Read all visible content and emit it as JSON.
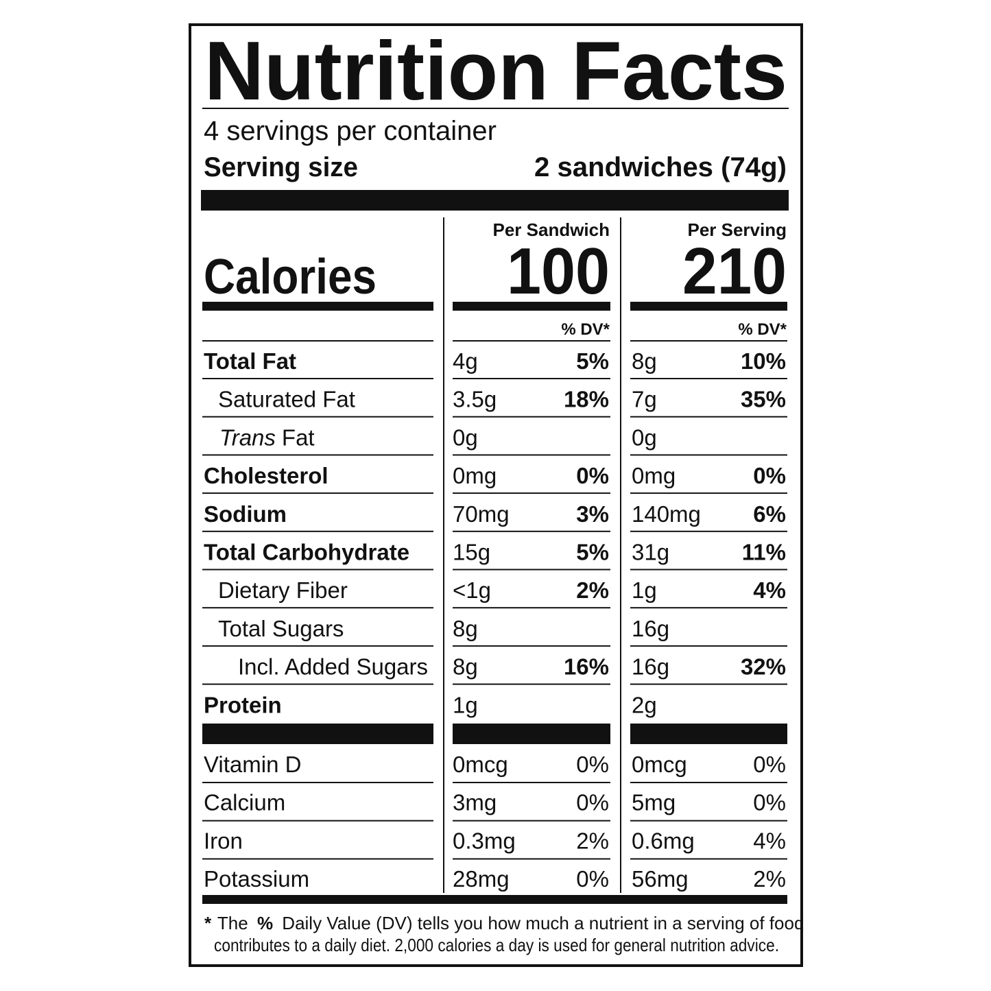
{
  "title": "Nutrition Facts",
  "servings": "4 servings per container",
  "serving_size": {
    "label": "Serving size",
    "value": "2 sandwiches (74g)"
  },
  "calories": {
    "label": "Calories",
    "columns": [
      {
        "header": "Per Sandwich",
        "value": "100",
        "dv_header": "% DV*"
      },
      {
        "header": "Per Serving",
        "value": "210",
        "dv_header": "% DV*"
      }
    ]
  },
  "nutrients": [
    {
      "name": "Total Fat",
      "values": [
        {
          "amount": "4g",
          "dv": "5%"
        },
        {
          "amount": "8g",
          "dv": "10%"
        }
      ]
    },
    {
      "name": "Saturated Fat",
      "values": [
        {
          "amount": "3.5g",
          "dv": "18%"
        },
        {
          "amount": "7g",
          "dv": "35%"
        }
      ]
    },
    {
      "name_italic": "Trans",
      "name": "Fat",
      "values": [
        {
          "amount": "0g",
          "dv": null
        },
        {
          "amount": "0g",
          "dv": null
        }
      ]
    },
    {
      "name": "Cholesterol",
      "values": [
        {
          "amount": "0mg",
          "dv": "0%"
        },
        {
          "amount": "0mg",
          "dv": "0%"
        }
      ]
    },
    {
      "name": "Sodium",
      "values": [
        {
          "amount": "70mg",
          "dv": "3%"
        },
        {
          "amount": "140mg",
          "dv": "6%"
        }
      ]
    },
    {
      "name": "Total Carbohydrate",
      "values": [
        {
          "amount": "15g",
          "dv": "5%"
        },
        {
          "amount": "31g",
          "dv": "11%"
        }
      ]
    },
    {
      "name": "Dietary Fiber",
      "values": [
        {
          "amount": "<1g",
          "dv": "2%"
        },
        {
          "amount": "1g",
          "dv": "4%"
        }
      ]
    },
    {
      "name": "Total Sugars",
      "values": [
        {
          "amount": "8g",
          "dv": null
        },
        {
          "amount": "16g",
          "dv": null
        }
      ]
    },
    {
      "name": "Incl. Added Sugars",
      "values": [
        {
          "amount": "8g",
          "dv": "16%"
        },
        {
          "amount": "16g",
          "dv": "32%"
        }
      ]
    },
    {
      "name": "Protein",
      "values": [
        {
          "amount": "1g",
          "dv": null
        },
        {
          "amount": "2g",
          "dv": null
        }
      ]
    }
  ],
  "micronutrients": [
    {
      "name": "Vitamin D",
      "values": [
        {
          "amount": "0mcg",
          "dv": "0%"
        },
        {
          "amount": "0mcg",
          "dv": "0%"
        }
      ]
    },
    {
      "name": "Calcium",
      "values": [
        {
          "amount": "3mg",
          "dv": "0%"
        },
        {
          "amount": "5mg",
          "dv": "0%"
        }
      ]
    },
    {
      "name": "Iron",
      "values": [
        {
          "amount": "0.3mg",
          "dv": "2%"
        },
        {
          "amount": "0.6mg",
          "dv": "4%"
        }
      ]
    },
    {
      "name": "Potassium",
      "values": [
        {
          "amount": "28mg",
          "dv": "0%"
        },
        {
          "amount": "56mg",
          "dv": "2%"
        }
      ]
    }
  ],
  "footnote": {
    "star": "*",
    "lead": "The",
    "percent": "%",
    "line1": "Daily Value (DV) tells you how much a nutrient in a serving of food",
    "line2": "contributes to a daily diet. 2,000 calories a day is used for general nutrition advice."
  }
}
